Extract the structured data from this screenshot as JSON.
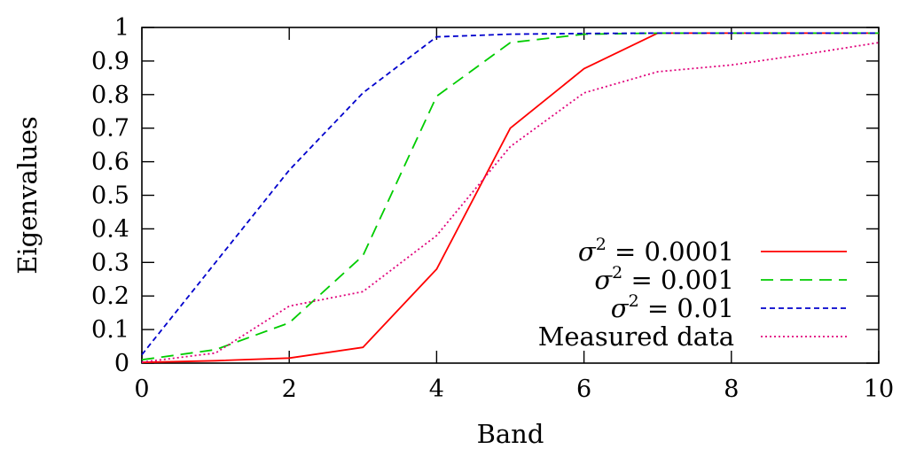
{
  "chart_data": {
    "type": "line",
    "title": "",
    "xlabel": "Band",
    "ylabel": "Eigenvalues",
    "xlim": [
      0,
      10
    ],
    "ylim": [
      0,
      1
    ],
    "xticks": [
      0,
      2,
      4,
      6,
      8,
      10
    ],
    "yticks": [
      0,
      0.1,
      0.2,
      0.3,
      0.4,
      0.5,
      0.6,
      0.7,
      0.8,
      0.9,
      1
    ],
    "xtick_labels": [
      "0",
      "2",
      "4",
      "6",
      "8",
      "10"
    ],
    "ytick_labels": [
      "0",
      "0.1",
      "0.2",
      "0.3",
      "0.4",
      "0.5",
      "0.6",
      "0.7",
      "0.8",
      "0.9",
      "1"
    ],
    "grid": false,
    "legend_position": "bottom-right",
    "series": [
      {
        "name": "σ² = 0.0001",
        "legend_symbol": "σ",
        "legend_sup": "2",
        "legend_value": " = 0.0001",
        "color": "#ff0000",
        "dash": "solid",
        "x": [
          0,
          1,
          2,
          3,
          4,
          5,
          6,
          7,
          8,
          9,
          10
        ],
        "y": [
          0.002,
          0.007,
          0.015,
          0.047,
          0.28,
          0.7,
          0.877,
          0.983,
          0.983,
          0.983,
          0.983
        ]
      },
      {
        "name": "σ² = 0.001",
        "legend_symbol": "σ",
        "legend_sup": "2",
        "legend_value": " = 0.001",
        "color": "#00cc00",
        "dash": "long",
        "x": [
          0,
          1,
          2,
          3,
          4,
          5,
          6,
          7,
          8,
          9,
          10
        ],
        "y": [
          0.01,
          0.04,
          0.12,
          0.32,
          0.795,
          0.955,
          0.98,
          0.983,
          0.983,
          0.983,
          0.983
        ]
      },
      {
        "name": "σ² = 0.01",
        "legend_symbol": "σ",
        "legend_sup": "2",
        "legend_value": " = 0.01",
        "color": "#0000cc",
        "dash": "short",
        "x": [
          0,
          1,
          2,
          3,
          4,
          5,
          6,
          7,
          8,
          9,
          10
        ],
        "y": [
          0.025,
          0.3,
          0.575,
          0.805,
          0.972,
          0.98,
          0.982,
          0.983,
          0.983,
          0.983,
          0.983
        ]
      },
      {
        "name": "Measured data",
        "legend_symbol": "",
        "legend_sup": "",
        "legend_value": "Measured data",
        "color": "#e0007a",
        "dash": "dotted",
        "x": [
          0,
          1,
          2,
          3,
          4,
          5,
          6,
          7,
          8,
          9,
          10
        ],
        "y": [
          0.003,
          0.03,
          0.17,
          0.213,
          0.38,
          0.645,
          0.805,
          0.868,
          0.888,
          0.92,
          0.955
        ]
      }
    ]
  }
}
